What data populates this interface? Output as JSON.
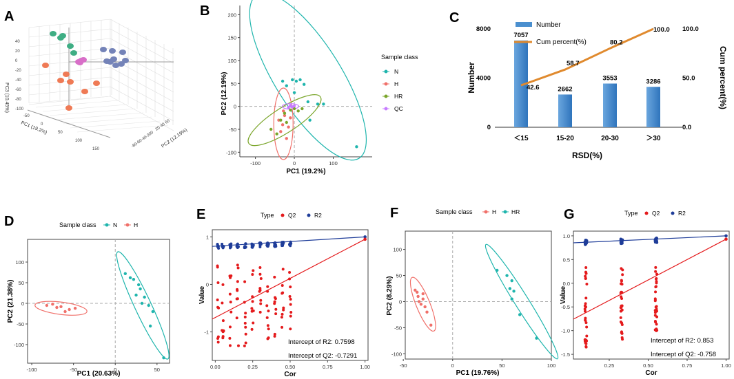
{
  "colors": {
    "N": "#1fb5ad",
    "H": "#f0706a",
    "HR": "#7aa52a",
    "QC": "#c77cff",
    "q2": "#e41a1c",
    "r2": "#1f3d99",
    "bar": "#4a8fcf",
    "line": "#e08a2e",
    "orange": "#ef7a55",
    "green": "#3fae84",
    "blue": "#7483b8",
    "pink": "#d86fc8"
  },
  "panels": {
    "A": "A",
    "B": "B",
    "C": "C",
    "D": "D",
    "E": "E",
    "F": "F",
    "G": "G"
  },
  "panelA": {
    "zlabel": "PC3 (10.45%)",
    "xlabel": "PC1 (19.2%)",
    "ylabel": "PC2 (12.19%)",
    "zticks": [
      "40",
      "20",
      "0",
      "-20",
      "-40",
      "-60",
      "-80",
      "-100"
    ],
    "xticks": [
      "-50",
      "0",
      "50",
      "100",
      "150"
    ],
    "yticks": [
      "-80",
      "-60",
      "-40",
      "-20",
      "0",
      "20",
      "40",
      "60"
    ]
  },
  "chart_data": [
    {
      "id": "B",
      "type": "scatter",
      "xlabel": "PC1 (19.2%)",
      "ylabel": "PC2 (12.19%)",
      "xlim": [
        -140,
        200
      ],
      "ylim": [
        -110,
        220
      ],
      "xticks": [
        -100,
        0,
        100
      ],
      "yticks": [
        -100,
        -50,
        0,
        50,
        100,
        150,
        200
      ],
      "legend_title": "Sample class",
      "legend": [
        "N",
        "H",
        "HR",
        "QC"
      ],
      "series": [
        {
          "name": "N",
          "points": [
            [
              -30,
              55
            ],
            [
              -20,
              45
            ],
            [
              -5,
              58
            ],
            [
              5,
              55
            ],
            [
              15,
              58
            ],
            [
              25,
              48
            ],
            [
              35,
              10
            ],
            [
              40,
              -30
            ],
            [
              60,
              5
            ],
            [
              75,
              5
            ],
            [
              160,
              -88
            ],
            [
              0,
              30
            ]
          ]
        },
        {
          "name": "H",
          "points": [
            [
              -40,
              -30
            ],
            [
              -35,
              -55
            ],
            [
              -30,
              -40
            ],
            [
              -25,
              -20
            ],
            [
              -20,
              -70
            ],
            [
              -15,
              -45
            ],
            [
              -10,
              -25
            ],
            [
              -28,
              -10
            ]
          ]
        },
        {
          "name": "HR",
          "points": [
            [
              -60,
              -50
            ],
            [
              -45,
              -60
            ],
            [
              -35,
              -30
            ],
            [
              -25,
              -15
            ],
            [
              -20,
              -35
            ],
            [
              -10,
              -8
            ],
            [
              0,
              -5
            ],
            [
              10,
              -10
            ],
            [
              20,
              -5
            ]
          ]
        },
        {
          "name": "QC",
          "points": [
            [
              -15,
              -2
            ],
            [
              -10,
              2
            ],
            [
              -5,
              -1
            ],
            [
              0,
              1
            ],
            [
              -8,
              0
            ]
          ]
        }
      ]
    },
    {
      "id": "C",
      "type": "bar",
      "categories": [
        "＜15",
        "15-20",
        "20-30",
        "＞30"
      ],
      "values": [
        7057,
        2662,
        3553,
        3286
      ],
      "cum_percent": [
        42.6,
        58.7,
        80.2,
        100.0
      ],
      "cum_labels": [
        "42.6",
        "58.7",
        "80.2",
        "100.0"
      ],
      "xlabel": "RSD(%)",
      "ylabel": "Number",
      "y2label": "Cum percent(%)",
      "ylim": [
        0,
        8000
      ],
      "y2lim": [
        0,
        100
      ],
      "yticks": [
        "0",
        "4000",
        "8000"
      ],
      "y2ticks": [
        "0.0",
        "50.0",
        "100.0"
      ],
      "legend": [
        "Number",
        "Cum percent(%)"
      ]
    },
    {
      "id": "D",
      "type": "scatter",
      "xlabel": "PC1 (20.63%)",
      "ylabel": "PC2 (21.38%)",
      "xlim": [
        -105,
        65
      ],
      "ylim": [
        -145,
        155
      ],
      "xticks": [
        -100,
        -50,
        0,
        50
      ],
      "yticks": [
        -100,
        -50,
        0,
        50,
        100
      ],
      "legend_title": "Sample class",
      "legend": [
        "N",
        "H"
      ],
      "series": [
        {
          "name": "N",
          "points": [
            [
              12,
              72
            ],
            [
              18,
              62
            ],
            [
              22,
              58
            ],
            [
              28,
              45
            ],
            [
              30,
              35
            ],
            [
              35,
              15
            ],
            [
              32,
              0
            ],
            [
              40,
              -5
            ],
            [
              45,
              -20
            ],
            [
              42,
              -55
            ],
            [
              58,
              -132
            ],
            [
              25,
              20
            ]
          ]
        },
        {
          "name": "H",
          "points": [
            [
              -82,
              -5
            ],
            [
              -75,
              -2
            ],
            [
              -70,
              -10
            ],
            [
              -65,
              -8
            ],
            [
              -60,
              -20
            ],
            [
              -55,
              -15
            ],
            [
              -48,
              -12
            ]
          ]
        }
      ]
    },
    {
      "id": "E",
      "type": "scatter",
      "xlabel": "Cor",
      "ylabel": "Value",
      "xlim": [
        -0.02,
        1.02
      ],
      "ylim": [
        -1.6,
        1.15
      ],
      "xticks": [
        "0.00",
        "0.25",
        "0.50",
        "0.75",
        "1.00"
      ],
      "yticks": [
        "-1",
        "0",
        "1"
      ],
      "legend_title": "Type",
      "legend": [
        "Q2",
        "R2"
      ],
      "r2_line": [
        [
          0,
          0.8
        ],
        [
          1,
          1
        ]
      ],
      "q2_line": [
        [
          0,
          -0.73
        ],
        [
          1,
          0.95
        ]
      ],
      "x_groups": [
        0.02,
        0.05,
        0.1,
        0.15,
        0.2,
        0.25,
        0.3,
        0.35,
        0.4,
        0.45,
        0.5
      ],
      "annotations": [
        "Intercept of R2: 0.7598",
        "Intercept of Q2: -0.7291"
      ]
    },
    {
      "id": "F",
      "type": "scatter",
      "xlabel": "PC1 (19.76%)",
      "ylabel": "PC2 (8.29%)",
      "xlim": [
        -48,
        100
      ],
      "ylim": [
        -110,
        135
      ],
      "xticks": [
        -50,
        0,
        50,
        100
      ],
      "yticks": [
        -100,
        -50,
        0,
        50,
        100
      ],
      "legend_title": "Sample class",
      "legend": [
        "H",
        "HR"
      ],
      "series": [
        {
          "name": "H",
          "points": [
            [
              -38,
              22
            ],
            [
              -36,
              18
            ],
            [
              -35,
              10
            ],
            [
              -34,
              0
            ],
            [
              -32,
              -5
            ],
            [
              -30,
              5
            ],
            [
              -28,
              -10
            ],
            [
              -26,
              -20
            ],
            [
              -22,
              -45
            ],
            [
              -30,
              15
            ]
          ]
        },
        {
          "name": "HR",
          "points": [
            [
              45,
              60
            ],
            [
              55,
              50
            ],
            [
              60,
              40
            ],
            [
              62,
              20
            ],
            [
              60,
              5
            ],
            [
              68,
              -25
            ],
            [
              85,
              -70
            ],
            [
              58,
              25
            ]
          ]
        }
      ]
    },
    {
      "id": "G",
      "type": "scatter",
      "xlabel": "Cor",
      "ylabel": "Value",
      "xlim": [
        0.02,
        1.02
      ],
      "ylim": [
        -1.6,
        1.1
      ],
      "xticks": [
        "0.25",
        "0.50",
        "0.75",
        "1.00"
      ],
      "yticks": [
        "-1.5",
        "-1.0",
        "-0.5",
        "0.0",
        "0.5",
        "1.0"
      ],
      "legend_title": "Type",
      "legend": [
        "Q2",
        "R2"
      ],
      "r2_line": [
        [
          0,
          0.853
        ],
        [
          1,
          1
        ]
      ],
      "q2_line": [
        [
          0,
          -0.758
        ],
        [
          1,
          0.93
        ]
      ],
      "x_groups": [
        0.1,
        0.33,
        0.55
      ],
      "annotations": [
        "Intercept of R2: 0.853",
        "Intercept of Q2: -0.758"
      ]
    }
  ]
}
